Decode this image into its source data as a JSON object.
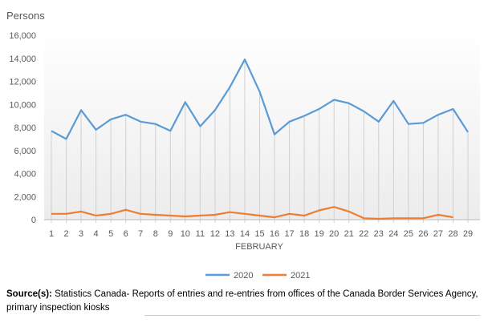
{
  "chart_data": {
    "type": "line",
    "ylabel": "Persons",
    "xlabel": "FEBRUARY",
    "ylim": [
      0,
      16000
    ],
    "yticks": [
      "0",
      "2,000",
      "4,000",
      "6,000",
      "8,000",
      "10,000",
      "12,000",
      "14,000",
      "16,000"
    ],
    "x": [
      1,
      2,
      3,
      4,
      5,
      6,
      7,
      8,
      9,
      10,
      11,
      12,
      13,
      14,
      15,
      16,
      17,
      18,
      19,
      20,
      21,
      22,
      23,
      24,
      25,
      26,
      27,
      28,
      29
    ],
    "grid": "vertical lines at each day",
    "legend": "bottom",
    "series": [
      {
        "name": "2020",
        "color": "#5b9bd5",
        "values": [
          7700,
          7000,
          9500,
          7800,
          8700,
          9100,
          8500,
          8300,
          7700,
          10200,
          8100,
          9500,
          11500,
          13900,
          11100,
          7400,
          8500,
          9000,
          9600,
          10400,
          10100,
          9400,
          8500,
          10300,
          8300,
          8400,
          9100,
          9600,
          7600
        ]
      },
      {
        "name": "2021",
        "color": "#ed7d31",
        "values": [
          500,
          500,
          700,
          350,
          500,
          850,
          500,
          420,
          350,
          280,
          350,
          420,
          650,
          500,
          350,
          200,
          500,
          350,
          800,
          1100,
          700,
          120,
          70,
          120,
          120,
          120,
          420,
          200,
          null
        ]
      }
    ]
  },
  "source": {
    "label": "Source(s):",
    "text": " Statistics Canada- Reports of entries and re-entries from offices of the Canada Border Services Agency, primary inspection kiosks"
  }
}
